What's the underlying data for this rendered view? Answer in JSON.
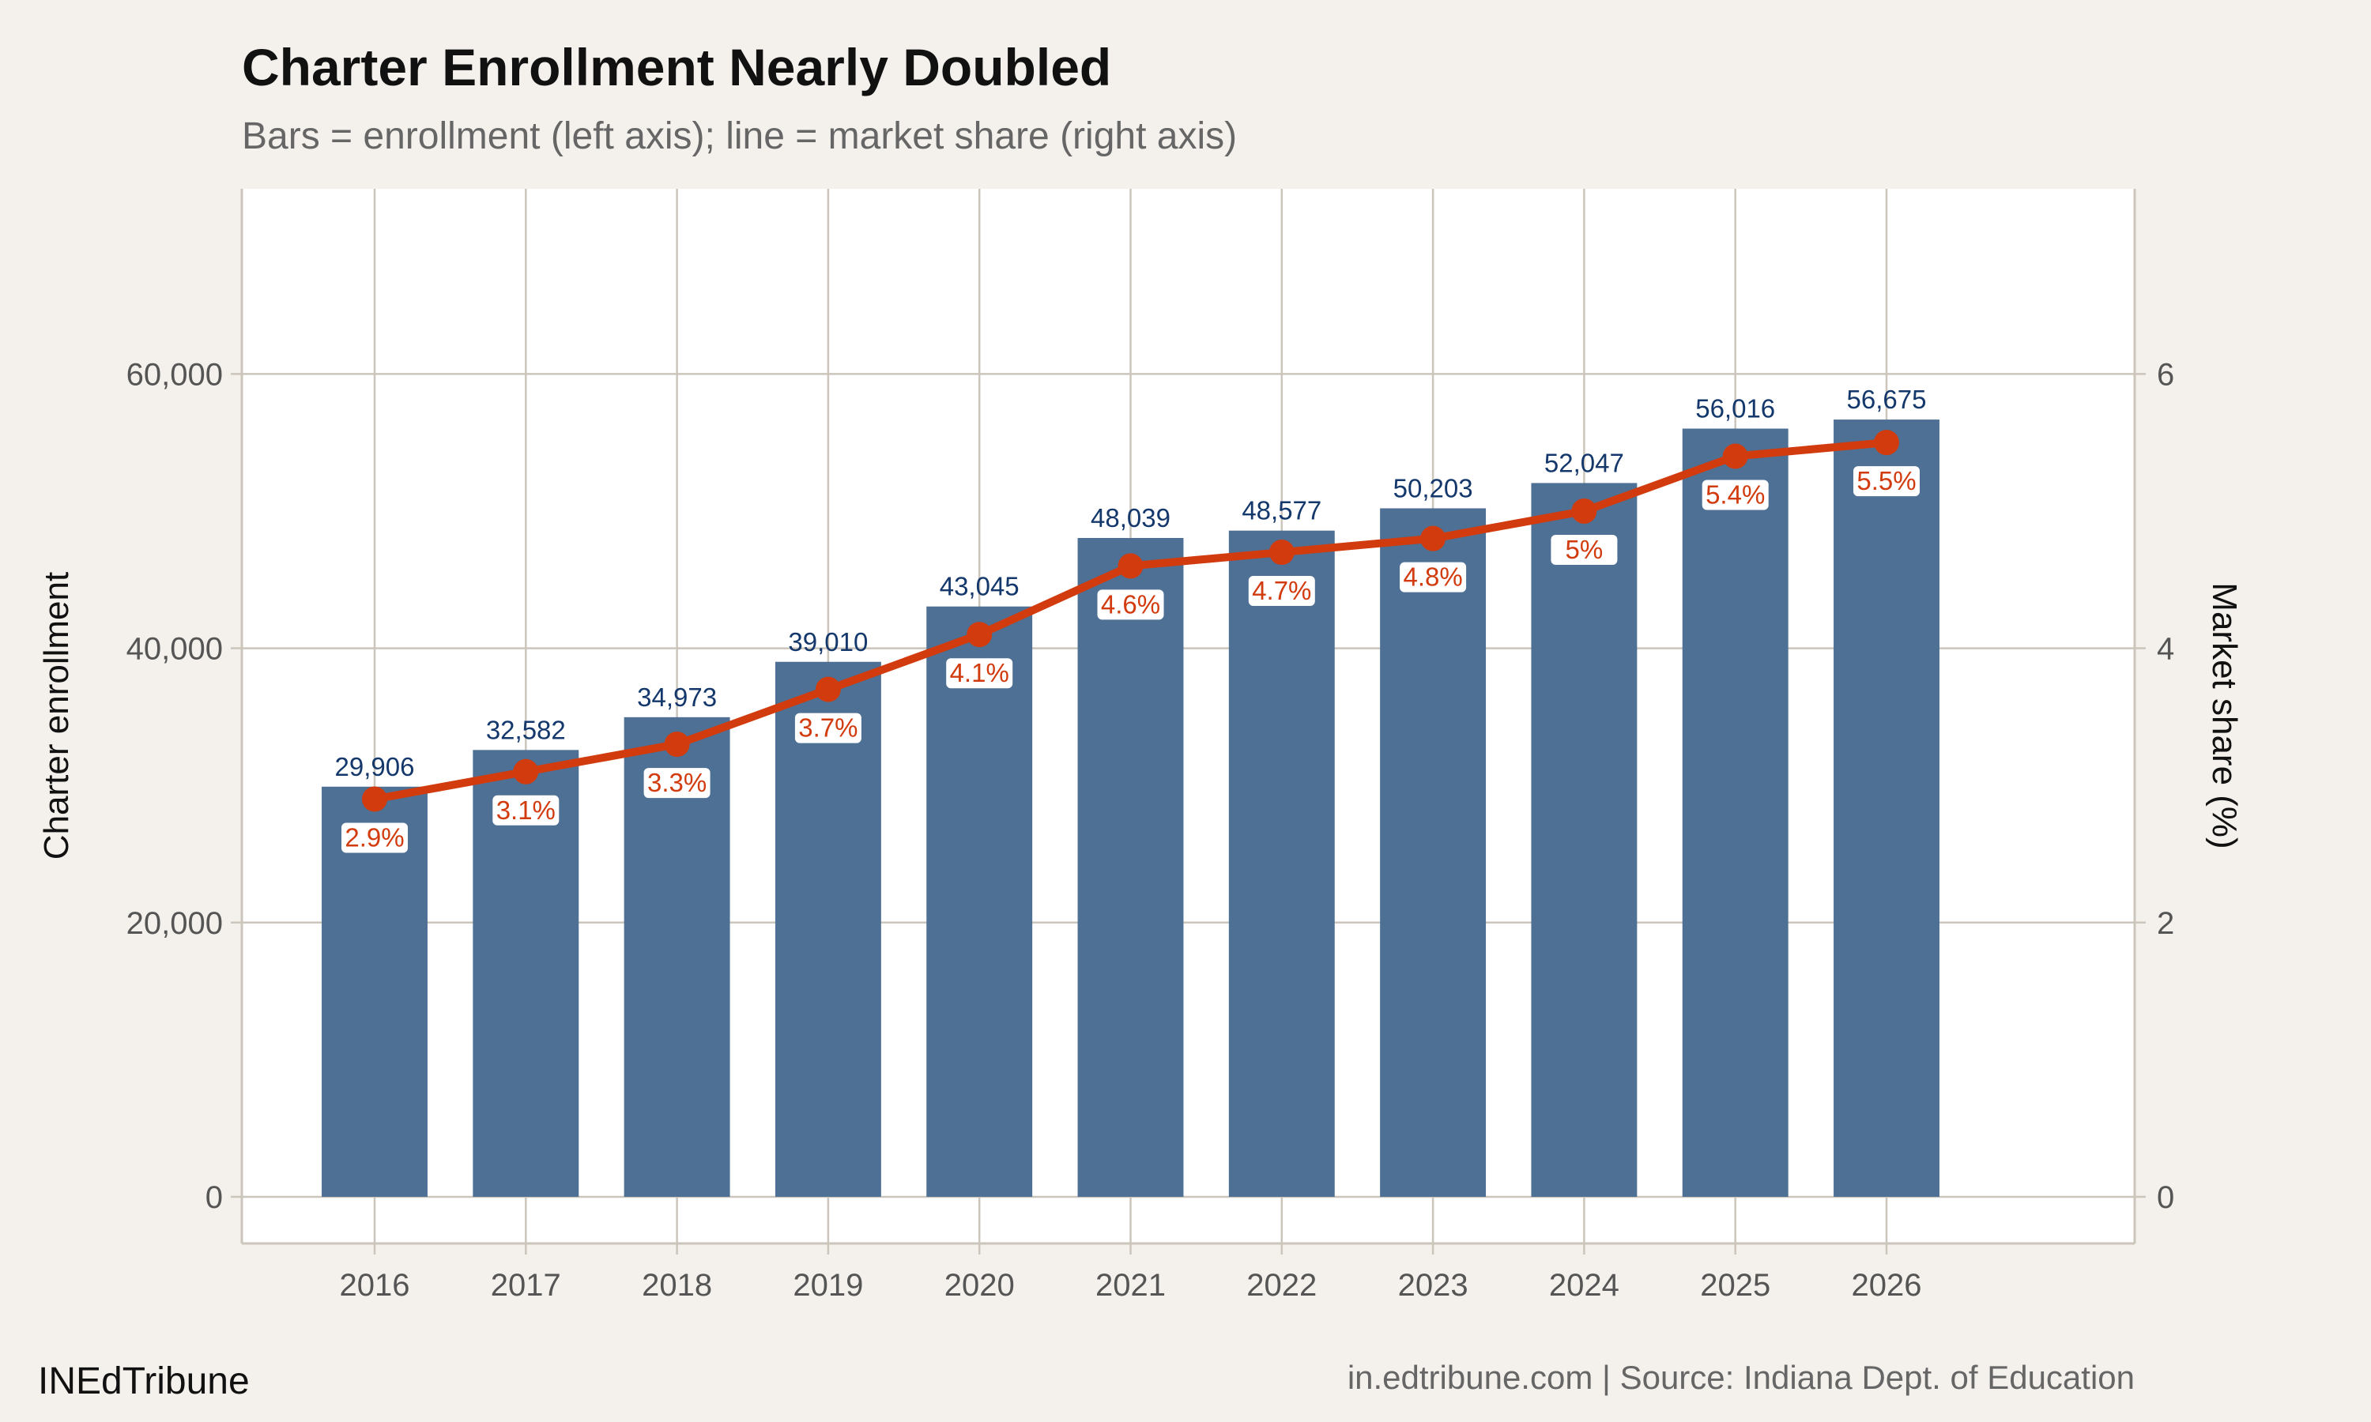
{
  "chart_data": {
    "type": "bar+line",
    "title": "Charter Enrollment Nearly Doubled",
    "subtitle": "Bars = enrollment (left axis); line = market share (right axis)",
    "ylabel": "Charter enrollment",
    "y2label": "Market share (%)",
    "categories": [
      "2016",
      "2017",
      "2018",
      "2019",
      "2020",
      "2021",
      "2022",
      "2023",
      "2024",
      "2025",
      "2026"
    ],
    "series": [
      {
        "type": "bar",
        "axis": "left",
        "values": [
          29906,
          32582,
          34973,
          39010,
          43045,
          48039,
          48577,
          50203,
          52047,
          56016,
          56675
        ],
        "labels": [
          "29,906",
          "32,582",
          "34,973",
          "39,010",
          "43,045",
          "48,039",
          "48,577",
          "50,203",
          "52,047",
          "56,016",
          "56,675"
        ],
        "color": "#4d7094"
      },
      {
        "type": "line",
        "axis": "right",
        "values": [
          2.9,
          3.1,
          3.3,
          3.7,
          4.1,
          4.6,
          4.7,
          4.8,
          5.0,
          5.4,
          5.5
        ],
        "labels": [
          "2.9%",
          "3.1%",
          "3.3%",
          "3.7%",
          "4.1%",
          "4.6%",
          "4.7%",
          "4.8%",
          "5%",
          "5.4%",
          "5.5%"
        ],
        "color": "#d13b0e"
      }
    ],
    "yticks": [
      0,
      20000,
      40000,
      60000
    ],
    "ytick_labels": [
      "0",
      "20,000",
      "40,000",
      "60,000"
    ],
    "y2ticks": [
      0,
      2,
      4,
      6
    ],
    "y2tick_labels": [
      "0",
      "2",
      "4",
      "6"
    ],
    "ylim": [
      -3400,
      73500
    ],
    "y2lim": [
      -0.34,
      7.35
    ],
    "grid": true,
    "label_color": "#14386b"
  },
  "footer": {
    "brand": "INEdTribune",
    "source": "in.edtribune.com | Source: Indiana Dept. of Education"
  }
}
